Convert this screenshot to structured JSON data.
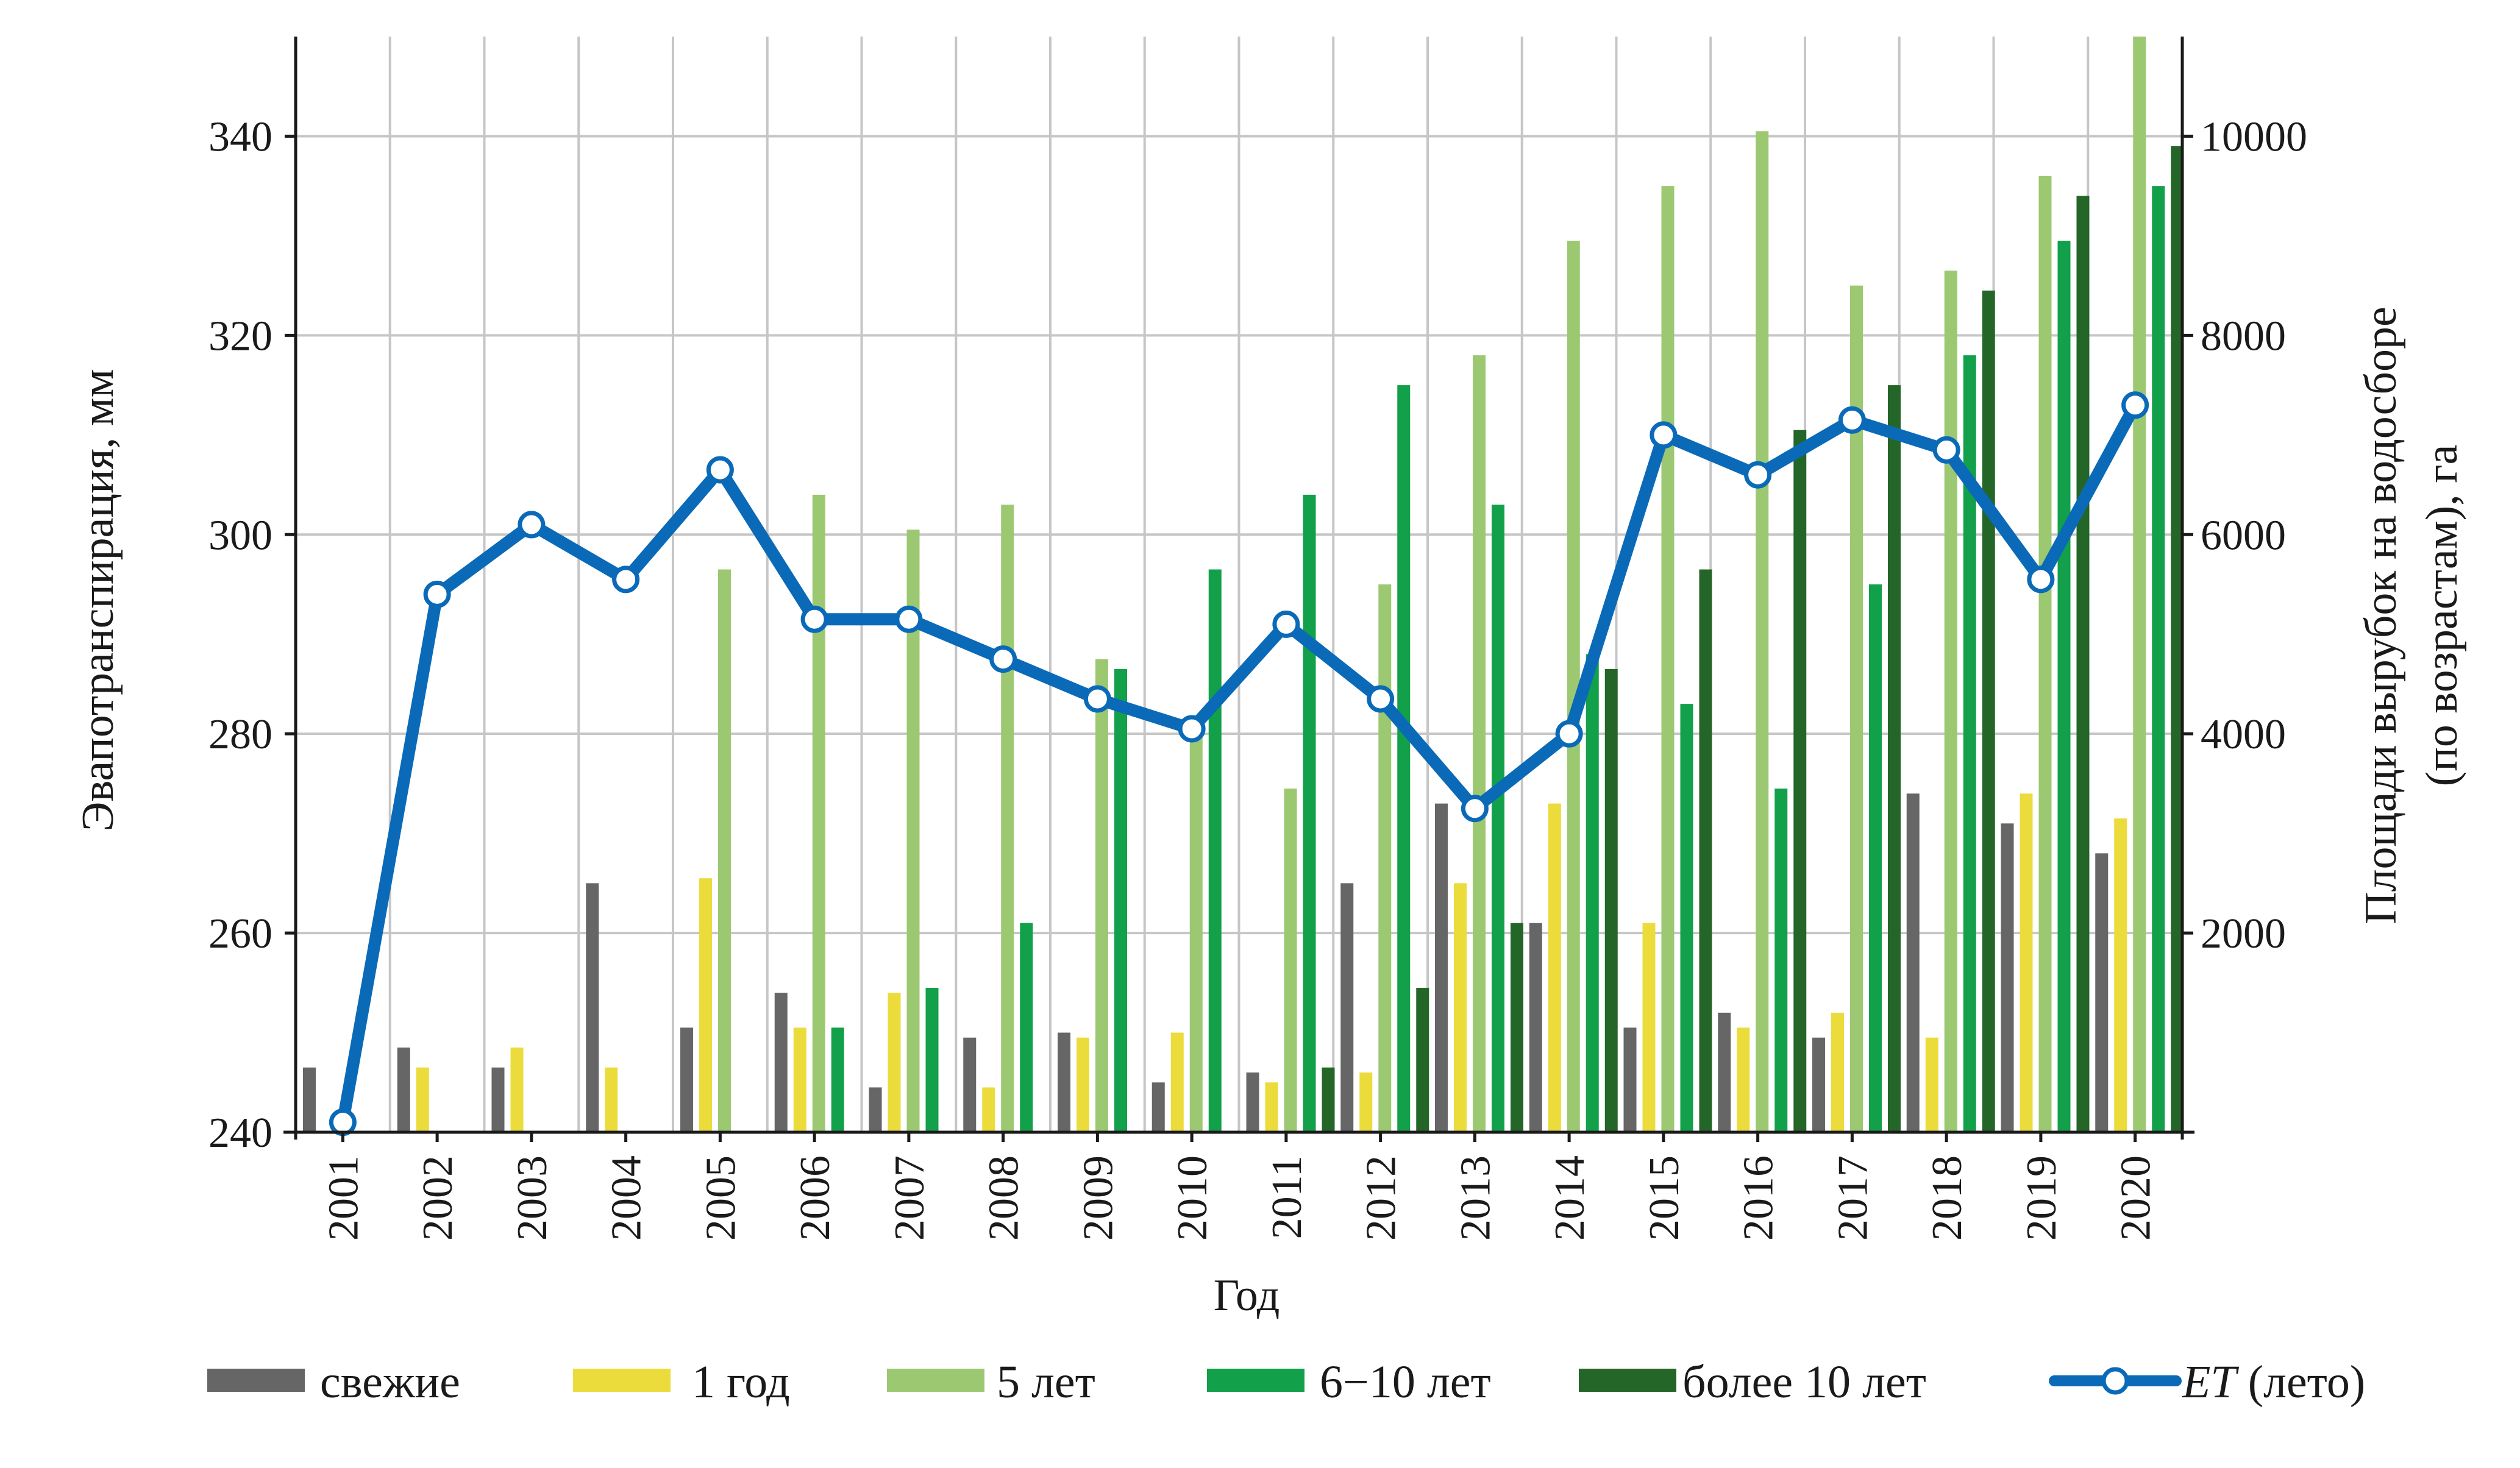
{
  "chart_data": {
    "type": "bar",
    "categories": [
      "2001",
      "2002",
      "2003",
      "2004",
      "2005",
      "2006",
      "2007",
      "2008",
      "2009",
      "2010",
      "2011",
      "2012",
      "2013",
      "2014",
      "2015",
      "2016",
      "2017",
      "2018",
      "2019",
      "2020"
    ],
    "xlabel": "Год",
    "ylabel": "Эвапотранспирация,  мм",
    "y2label_line1": "Площади вырубок на водосборе",
    "y2label_line2": "(по возрастам),   га",
    "ylim": [
      240,
      350
    ],
    "yticks": [
      240,
      260,
      280,
      300,
      320,
      340
    ],
    "y2lim": [
      0,
      11000
    ],
    "y2ticks": [
      2000,
      4000,
      6000,
      8000,
      10000
    ],
    "grid": true,
    "legend_position": "bottom",
    "series": [
      {
        "name": "свежие",
        "color": "#666666",
        "axis": "right",
        "values": [
          650,
          850,
          650,
          2500,
          1050,
          1400,
          450,
          950,
          1000,
          500,
          600,
          2500,
          3300,
          2100,
          1050,
          1200,
          950,
          3400,
          3100,
          2800
        ]
      },
      {
        "name": "1 год",
        "color": "#ebdc3c",
        "axis": "right",
        "values": [
          0,
          650,
          850,
          650,
          2550,
          1050,
          1400,
          450,
          950,
          1000,
          500,
          600,
          2500,
          3300,
          2100,
          1050,
          1200,
          950,
          3400,
          3150
        ]
      },
      {
        "name": "5 лет",
        "color": "#9cc872",
        "axis": "right",
        "values": [
          0,
          0,
          0,
          0,
          5650,
          6400,
          6050,
          6300,
          4750,
          4050,
          3450,
          5500,
          7800,
          8950,
          9500,
          10050,
          8500,
          8650,
          9600,
          11000
        ]
      },
      {
        "name": "6−10 лет",
        "color": "#12a04a",
        "axis": "right",
        "values": [
          0,
          0,
          0,
          0,
          0,
          1050,
          1450,
          2100,
          4650,
          5650,
          6400,
          7500,
          6300,
          4800,
          4300,
          3450,
          5500,
          7800,
          8950,
          9500
        ]
      },
      {
        "name": "более 10 лет",
        "color": "#246628",
        "axis": "right",
        "values": [
          0,
          0,
          0,
          0,
          0,
          0,
          0,
          0,
          0,
          0,
          650,
          1450,
          2100,
          4650,
          5650,
          7050,
          7500,
          8450,
          9400,
          9900
        ]
      },
      {
        "name_em": "ET",
        "name_rest": " (лето)",
        "type": "line",
        "color": "#0a6ab8",
        "axis": "left",
        "values": [
          241,
          294,
          301,
          295.5,
          306.5,
          291.5,
          291.5,
          287.5,
          283.5,
          280.5,
          291,
          283.5,
          272.5,
          280,
          310,
          306,
          311.5,
          308.5,
          295.5,
          313
        ]
      }
    ]
  }
}
